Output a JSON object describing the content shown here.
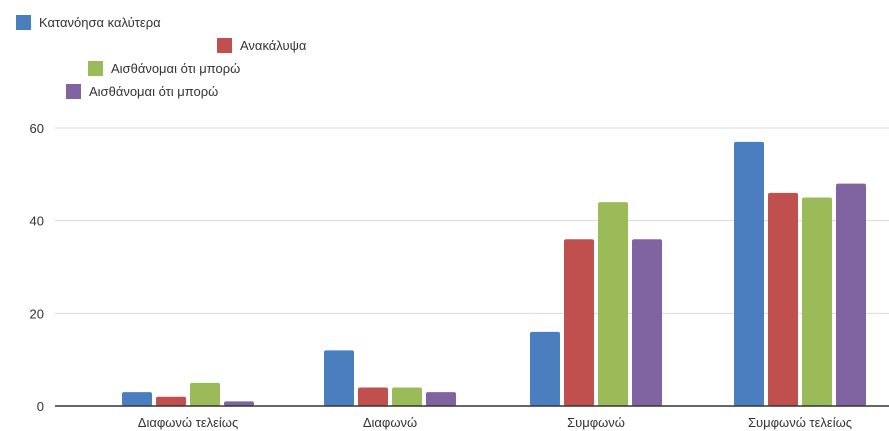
{
  "chart_data": {
    "type": "bar",
    "categories": [
      "Διαφωνώ τελείως",
      "Διαφωνώ",
      "Συμφωνώ",
      "Συμφωνώ τελείως"
    ],
    "series": [
      {
        "name": "Κατανόησα καλύτερα",
        "color": "#4a7ebf",
        "values": [
          3,
          12,
          16,
          57
        ]
      },
      {
        "name": "Ανακάλυψα",
        "color": "#c0504d",
        "values": [
          2,
          4,
          36,
          46
        ]
      },
      {
        "name": "Αισθάνομαι ότι μπορώ",
        "color": "#9bbb59",
        "values": [
          5,
          4,
          44,
          45
        ]
      },
      {
        "name": "Αισθάνομαι ότι μπορώ",
        "color": "#8064a2",
        "values": [
          1,
          3,
          36,
          48
        ]
      }
    ],
    "yticks": [
      0,
      20,
      40,
      60
    ],
    "ylim": [
      0,
      60
    ],
    "grid": true,
    "legend_position": "top-left"
  }
}
